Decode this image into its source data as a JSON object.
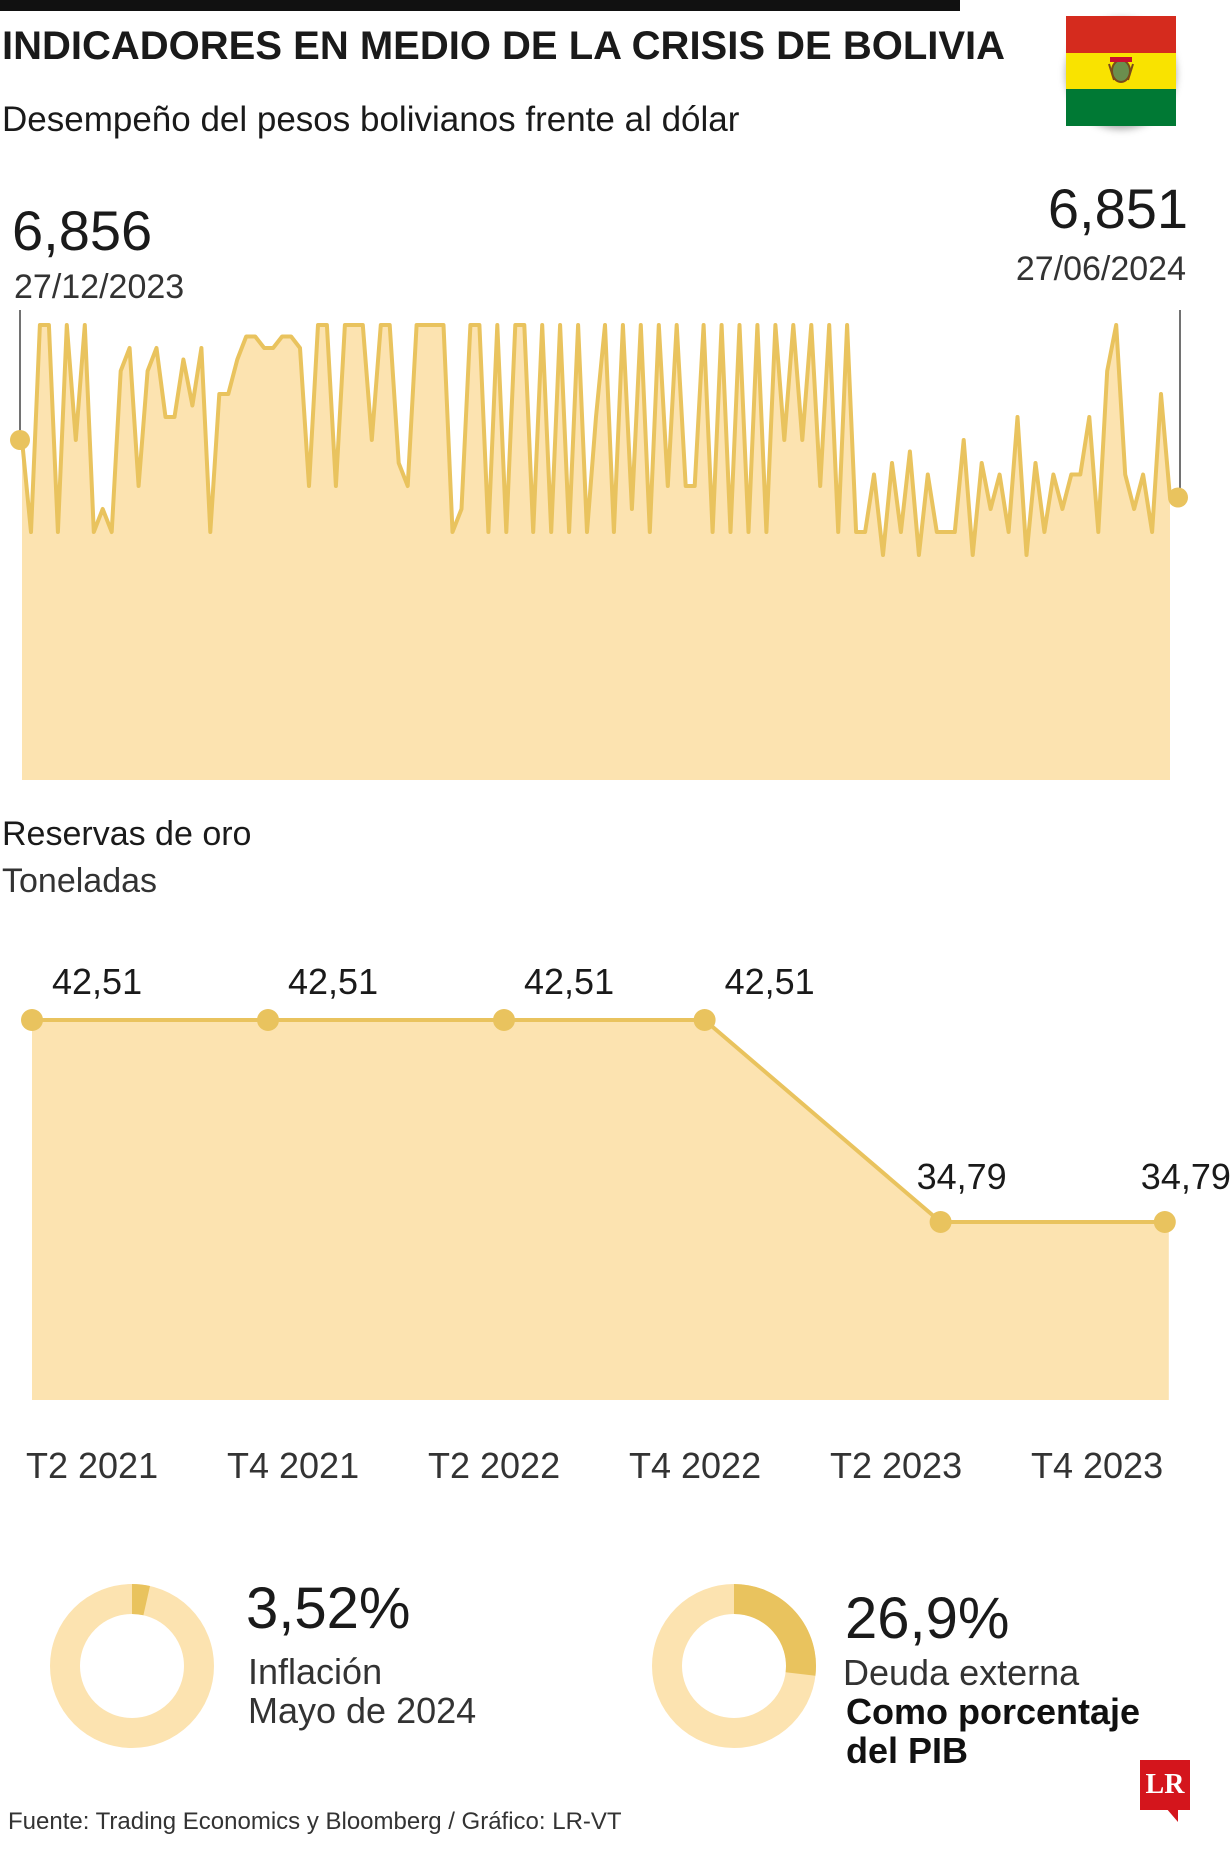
{
  "header": {
    "title": "INDICADORES EN MEDIO DE LA CRISIS DE BOLIVIA",
    "subtitle": "Desempeño del pesos bolivianos frente al dólar"
  },
  "flag_icon": "bolivia-flag-icon",
  "colors": {
    "area_fill": "#fce3b0",
    "line": "#e9c35e",
    "marker": "#e9c35e",
    "donut_light": "#fce3b0",
    "donut_accent": "#e9c35e",
    "brand_red": "#d4151c"
  },
  "fx": {
    "start_value": "6,856",
    "start_date": "27/12/2023",
    "end_value": "6,851",
    "end_date": "27/06/2024"
  },
  "gold": {
    "title": "Reservas de oro",
    "unit": "Toneladas"
  },
  "donuts": [
    {
      "value": "3,52%",
      "label1": "Inflación",
      "label2": "Mayo de 2024",
      "label3": ""
    },
    {
      "value": "26,9%",
      "label1": "Deuda externa",
      "label2": "Como porcentaje",
      "label3": "del PIB"
    }
  ],
  "source": "Fuente: Trading Economics y Bloomberg / Gráfico: LR-VT",
  "logo_text": "LR",
  "chart_data": [
    {
      "type": "area",
      "title": "Desempeño del pesos bolivianos frente al dólar",
      "x_start": "27/12/2023",
      "x_end": "27/06/2024",
      "ylim": [
        6.8,
        6.9
      ],
      "endpoint_labels": [
        "6,856",
        "6,851"
      ],
      "values": [
        6.856,
        6.848,
        6.866,
        6.866,
        6.848,
        6.866,
        6.856,
        6.866,
        6.848,
        6.85,
        6.848,
        6.862,
        6.864,
        6.852,
        6.862,
        6.864,
        6.858,
        6.858,
        6.863,
        6.859,
        6.864,
        6.848,
        6.86,
        6.86,
        6.863,
        6.865,
        6.865,
        6.864,
        6.864,
        6.865,
        6.865,
        6.864,
        6.852,
        6.866,
        6.866,
        6.852,
        6.866,
        6.866,
        6.866,
        6.856,
        6.866,
        6.866,
        6.854,
        6.852,
        6.866,
        6.866,
        6.866,
        6.866,
        6.848,
        6.85,
        6.866,
        6.866,
        6.848,
        6.866,
        6.848,
        6.866,
        6.866,
        6.848,
        6.866,
        6.848,
        6.866,
        6.848,
        6.866,
        6.848,
        6.858,
        6.866,
        6.848,
        6.866,
        6.85,
        6.866,
        6.848,
        6.866,
        6.852,
        6.866,
        6.852,
        6.852,
        6.866,
        6.848,
        6.866,
        6.848,
        6.866,
        6.848,
        6.866,
        6.848,
        6.866,
        6.856,
        6.866,
        6.856,
        6.866,
        6.852,
        6.866,
        6.848,
        6.866,
        6.848,
        6.848,
        6.853,
        6.846,
        6.854,
        6.848,
        6.855,
        6.846,
        6.853,
        6.848,
        6.848,
        6.848,
        6.856,
        6.846,
        6.854,
        6.85,
        6.853,
        6.848,
        6.858,
        6.846,
        6.854,
        6.848,
        6.853,
        6.85,
        6.853,
        6.853,
        6.858,
        6.848,
        6.862,
        6.866,
        6.853,
        6.85,
        6.853,
        6.848,
        6.86,
        6.851
      ]
    },
    {
      "type": "area",
      "title": "Reservas de oro",
      "ylabel": "Toneladas",
      "categories": [
        "T2 2021",
        "T4 2021",
        "T2 2022",
        "T4 2022",
        "T2 2023",
        "T4 2023"
      ],
      "points": [
        {
          "x": 0.0,
          "value": 42.51,
          "label": "42,51"
        },
        {
          "x": 1.0,
          "value": 42.51,
          "label": "42,51"
        },
        {
          "x": 2.0,
          "value": 42.51,
          "label": "42,51"
        },
        {
          "x": 2.85,
          "value": 42.51,
          "label": "42,51"
        },
        {
          "x": 3.85,
          "value": 34.79,
          "label": "34,79"
        },
        {
          "x": 4.8,
          "value": 34.79,
          "label": "34,79"
        }
      ],
      "ylim": [
        20,
        50
      ]
    },
    {
      "type": "pie",
      "title": "Inflación",
      "values": [
        3.52,
        96.48
      ]
    },
    {
      "type": "pie",
      "title": "Deuda externa",
      "values": [
        26.9,
        73.1
      ]
    }
  ]
}
